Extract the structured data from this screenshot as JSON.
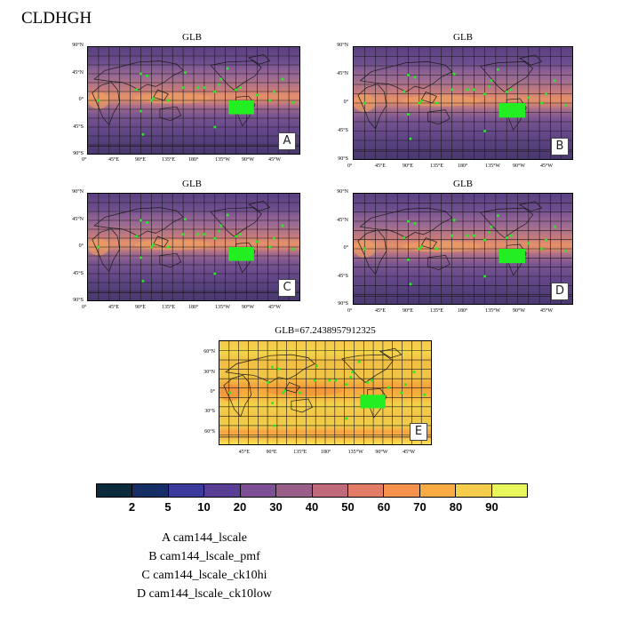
{
  "figure": {
    "title": "CLDHGH"
  },
  "panels": [
    {
      "id": "A",
      "title": "GLB",
      "tag": "A",
      "ylabels": [
        "90°N",
        "45°N",
        "0°",
        "45°S",
        "90°S"
      ],
      "xlabels": [
        "0°",
        "45°E",
        "90°E",
        "135°E",
        "180°",
        "135°W",
        "90°W",
        "45°W"
      ]
    },
    {
      "id": "B",
      "title": "GLB",
      "tag": "B",
      "ylabels": [
        "90°N",
        "45°N",
        "0°",
        "45°S",
        "90°S"
      ],
      "xlabels": [
        "0°",
        "45°E",
        "90°E",
        "135°E",
        "180°",
        "135°W",
        "90°W",
        "45°W"
      ]
    },
    {
      "id": "C",
      "title": "GLB",
      "tag": "C",
      "ylabels": [
        "90°N",
        "45°N",
        "0°",
        "45°S",
        "90°S"
      ],
      "xlabels": [
        "0°",
        "45°E",
        "90°E",
        "135°E",
        "180°",
        "135°W",
        "90°W",
        "45°W"
      ]
    },
    {
      "id": "D",
      "title": "GLB",
      "tag": "D",
      "ylabels": [
        "90°N",
        "45°N",
        "0°",
        "45°S",
        "90°S"
      ],
      "xlabels": [
        "0°",
        "45°E",
        "90°E",
        "135°E",
        "180°",
        "135°W",
        "90°W",
        "45°W"
      ]
    },
    {
      "id": "E",
      "title": "GLB=67.2438957912325",
      "tag": "E",
      "ylabels": [
        "60°N",
        "30°N",
        "0°",
        "30°S",
        "60°S"
      ],
      "xlabels": [
        "45°E",
        "90°E",
        "135°E",
        "180°",
        "135°W",
        "90°W",
        "45°W"
      ]
    }
  ],
  "colorbar": {
    "labels": [
      "2",
      "5",
      "10",
      "20",
      "30",
      "40",
      "50",
      "60",
      "70",
      "80",
      "90"
    ],
    "colors": [
      "#0b2a3c",
      "#152f66",
      "#3a3a9a",
      "#5a3e96",
      "#7c4e94",
      "#9a5e8a",
      "#be6a7a",
      "#e27c64",
      "#f5924e",
      "#f7ab42",
      "#f6cd4a",
      "#eaf65e"
    ]
  },
  "legend": {
    "lines": [
      "A  cam144_lscale",
      "B  cam144_lscale_pmf",
      "C  cam144_lscale_ck10hi",
      "D  cam144_lscale_ck10low"
    ]
  },
  "colors": {
    "station_marker": "#22ee22",
    "grid": "#1a1a1a",
    "coast": "#1a1a1a"
  }
}
